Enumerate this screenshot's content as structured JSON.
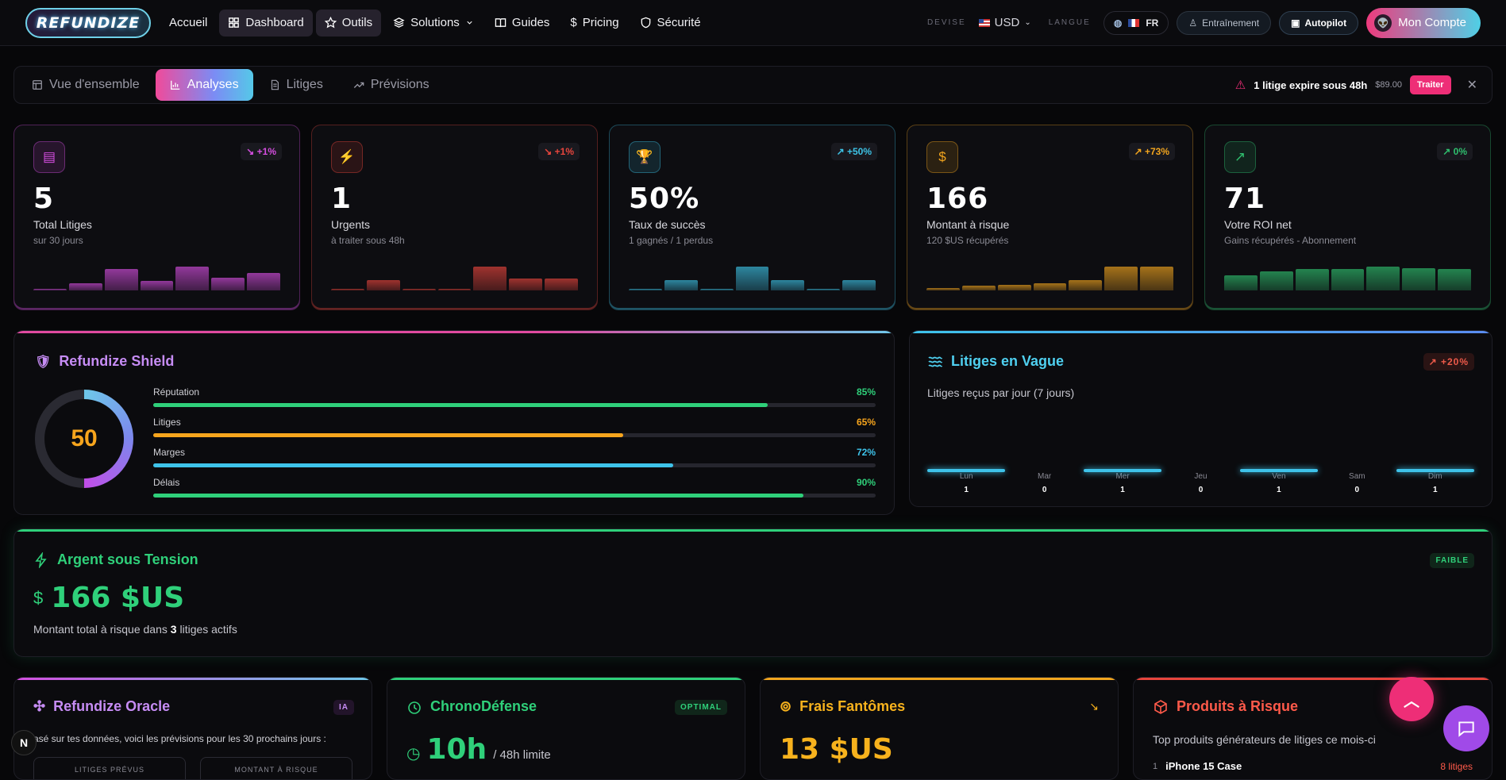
{
  "brand": {
    "logo_text": "REFUNDIZE"
  },
  "nav": {
    "links": [
      {
        "label": "Accueil"
      },
      {
        "label": "Dashboard",
        "icon": "dashboard-icon"
      },
      {
        "label": "Outils",
        "icon": "star-icon"
      },
      {
        "label": "Solutions",
        "icon": "layers-icon"
      },
      {
        "label": "Guides",
        "icon": "book-icon"
      },
      {
        "label": "Pricing",
        "icon": "dollar-icon"
      },
      {
        "label": "Sécurité",
        "icon": "shield-icon"
      }
    ],
    "currency_label": "DEVISE",
    "currency": "USD",
    "language_label": "LANGUE",
    "language": "FR",
    "training": "Entraînement",
    "autopilot": "Autopilot",
    "account": "Mon Compte"
  },
  "tabs": [
    {
      "label": "Vue d'ensemble"
    },
    {
      "label": "Analyses"
    },
    {
      "label": "Litiges"
    },
    {
      "label": "Prévisions"
    }
  ],
  "alert": {
    "text": "1 litige expire sous 48h",
    "amount": "$89.00",
    "action": "Traiter"
  },
  "kpis": [
    {
      "value": "5",
      "title": "Total Litiges",
      "sub": "sur 30 jours",
      "delta": "↘ +1%",
      "color": "#d54ee0",
      "bars": [
        0.05,
        0.3,
        0.9,
        0.4,
        1,
        0.55,
        0.75
      ]
    },
    {
      "value": "1",
      "title": "Urgents",
      "sub": "à traiter sous 48h",
      "delta": "↘ +1%",
      "color": "#e8453d",
      "bars": [
        0.05,
        0.45,
        0.05,
        0.05,
        1,
        0.5,
        0.5
      ]
    },
    {
      "value": "50%",
      "title": "Taux de succès",
      "sub": "1 gagnés / 1 perdus",
      "delta": "↗ +50%",
      "color": "#3dc3e6",
      "bars": [
        0.05,
        0.45,
        0.05,
        1,
        0.45,
        0.05,
        0.45
      ]
    },
    {
      "value": "166",
      "title": "Montant à risque",
      "sub": "120 $US récupérés",
      "delta": "↗ +73%",
      "color": "#f2a51e",
      "bars": [
        0.1,
        0.2,
        0.25,
        0.3,
        0.45,
        1,
        1
      ]
    },
    {
      "value": "71",
      "title": "Votre ROI net",
      "sub": "Gains récupérés - Abonnement",
      "delta": "↗ 0%",
      "color": "#2fbf6e",
      "bars": [
        0.65,
        0.8,
        0.9,
        0.9,
        1,
        0.95,
        0.9
      ]
    }
  ],
  "shield": {
    "title": "Refundize Shield",
    "score": "50",
    "metrics": [
      {
        "label": "Réputation",
        "value": "85%",
        "pct": 85,
        "color": "#2fd07a"
      },
      {
        "label": "Litiges",
        "value": "65%",
        "pct": 65,
        "color": "#f7a51d"
      },
      {
        "label": "Marges",
        "value": "72%",
        "pct": 72,
        "color": "#3ec3ea"
      },
      {
        "label": "Délais",
        "value": "90%",
        "pct": 90,
        "color": "#2fd07a"
      }
    ]
  },
  "vague": {
    "title": "Litiges en Vague",
    "subtitle": "Litiges reçus par jour (7 jours)",
    "delta": "↗ +20%",
    "days": [
      {
        "d": "Lun",
        "c": "1"
      },
      {
        "d": "Mar",
        "c": "0"
      },
      {
        "d": "Mer",
        "c": "1"
      },
      {
        "d": "Jeu",
        "c": "0"
      },
      {
        "d": "Ven",
        "c": "1"
      },
      {
        "d": "Sam",
        "c": "0"
      },
      {
        "d": "Dim",
        "c": "1"
      }
    ]
  },
  "tension": {
    "title": "Argent sous Tension",
    "badge": "FAIBLE",
    "amount": "166 $US",
    "desc_pre": "Montant total à risque dans ",
    "count": "3",
    "desc_post": " litiges actifs"
  },
  "oracle": {
    "title": "Refundize Oracle",
    "badge": "IA",
    "text": "asé sur tes données, voici les prévisions pour les 30 prochains jours :",
    "box1": "LITIGES PRÉVUS",
    "box2": "MONTANT À RISQUE"
  },
  "chrono": {
    "title": "ChronoDéfense",
    "badge": "OPTIMAL",
    "value": "10h",
    "limit": "/ 48h limite"
  },
  "frais": {
    "title": "Frais Fantômes",
    "value": "13 $US"
  },
  "produits": {
    "title": "Produits à Risque",
    "subtitle": "Top produits générateurs de litiges ce mois-ci",
    "item": "iPhone 15 Case",
    "item_count": "8 litiges",
    "item_rank": "1"
  }
}
